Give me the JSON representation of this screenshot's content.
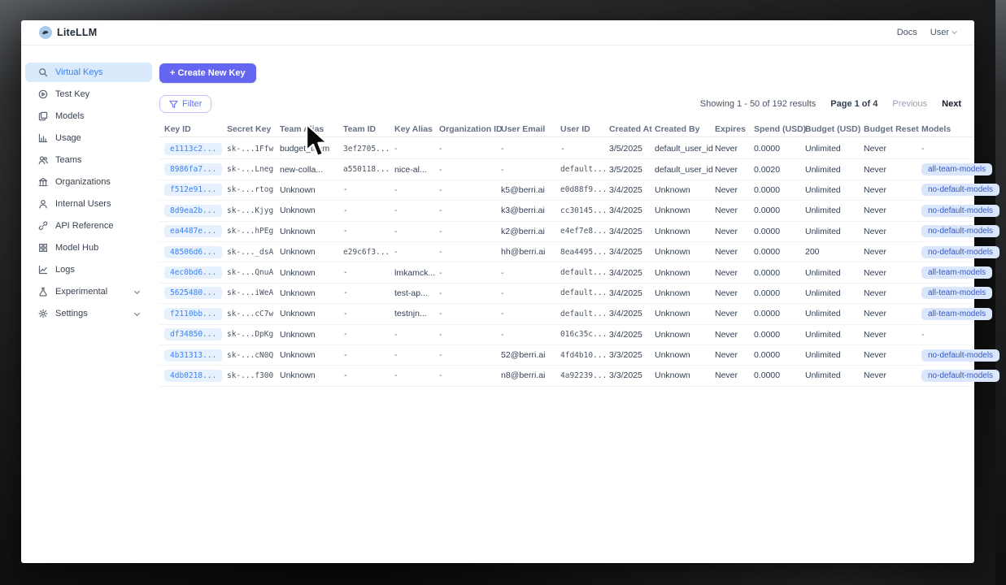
{
  "header": {
    "logo_text": "LiteLLM",
    "docs_label": "Docs",
    "user_label": "User"
  },
  "sidebar": {
    "items": [
      {
        "label": "Virtual Keys",
        "icon": "search-icon",
        "active": true,
        "chevron": false
      },
      {
        "label": "Test Key",
        "icon": "play-circle-icon",
        "active": false,
        "chevron": false
      },
      {
        "label": "Models",
        "icon": "stack-icon",
        "active": false,
        "chevron": false
      },
      {
        "label": "Usage",
        "icon": "bar-chart-icon",
        "active": false,
        "chevron": false
      },
      {
        "label": "Teams",
        "icon": "users-icon",
        "active": false,
        "chevron": false
      },
      {
        "label": "Organizations",
        "icon": "bank-icon",
        "active": false,
        "chevron": false
      },
      {
        "label": "Internal Users",
        "icon": "user-icon",
        "active": false,
        "chevron": false
      },
      {
        "label": "API Reference",
        "icon": "link-icon",
        "active": false,
        "chevron": false
      },
      {
        "label": "Model Hub",
        "icon": "grid-icon",
        "active": false,
        "chevron": false
      },
      {
        "label": "Logs",
        "icon": "line-chart-icon",
        "active": false,
        "chevron": false
      },
      {
        "label": "Experimental",
        "icon": "flask-icon",
        "active": false,
        "chevron": true
      },
      {
        "label": "Settings",
        "icon": "gear-icon",
        "active": false,
        "chevron": true
      }
    ]
  },
  "toolbar": {
    "create_key_label": "+ Create New Key",
    "filter_label": "Filter"
  },
  "pagination": {
    "showing": "Showing 1 - 50 of 192 results",
    "page": "Page 1 of 4",
    "previous": "Previous",
    "next": "Next"
  },
  "table": {
    "columns": [
      "Key ID",
      "Secret Key",
      "Team Alias",
      "Team ID",
      "Key Alias",
      "Organization ID",
      "User Email",
      "User ID",
      "Created At",
      "Created By",
      "Expires",
      "Spend (USD)",
      "Budget (USD)",
      "Budget Reset",
      "Models"
    ],
    "rows": [
      {
        "key_id": "e1113c2...",
        "secret_key": "sk-...1Ffw",
        "team_alias": "budget_team",
        "team_id": "3ef2705...",
        "key_alias": "-",
        "org_id": "-",
        "user_email": "-",
        "user_id": "-",
        "created_at": "3/5/2025",
        "created_by": "default_user_id",
        "expires": "Never",
        "spend": "0.0000",
        "budget": "Unlimited",
        "budget_reset": "Never",
        "models": "-"
      },
      {
        "key_id": "8986fa7...",
        "secret_key": "sk-...Lneg",
        "team_alias": "new-colla...",
        "team_id": "a550118...",
        "key_alias": "nice-al...",
        "org_id": "-",
        "user_email": "-",
        "user_id": "default...",
        "created_at": "3/5/2025",
        "created_by": "default_user_id",
        "expires": "Never",
        "spend": "0.0020",
        "budget": "Unlimited",
        "budget_reset": "Never",
        "models": "all-team-models"
      },
      {
        "key_id": "f512e91...",
        "secret_key": "sk-...rtog",
        "team_alias": "Unknown",
        "team_id": "-",
        "key_alias": "-",
        "org_id": "-",
        "user_email": "k5@berri.ai",
        "user_id": "e0d88f9...",
        "created_at": "3/4/2025",
        "created_by": "Unknown",
        "expires": "Never",
        "spend": "0.0000",
        "budget": "Unlimited",
        "budget_reset": "Never",
        "models": "no-default-models"
      },
      {
        "key_id": "8d9ea2b...",
        "secret_key": "sk-...Kjyg",
        "team_alias": "Unknown",
        "team_id": "-",
        "key_alias": "-",
        "org_id": "-",
        "user_email": "k3@berri.ai",
        "user_id": "cc30145...",
        "created_at": "3/4/2025",
        "created_by": "Unknown",
        "expires": "Never",
        "spend": "0.0000",
        "budget": "Unlimited",
        "budget_reset": "Never",
        "models": "no-default-models"
      },
      {
        "key_id": "ea4487e...",
        "secret_key": "sk-...hPEg",
        "team_alias": "Unknown",
        "team_id": "-",
        "key_alias": "-",
        "org_id": "-",
        "user_email": "k2@berri.ai",
        "user_id": "e4ef7e8...",
        "created_at": "3/4/2025",
        "created_by": "Unknown",
        "expires": "Never",
        "spend": "0.0000",
        "budget": "Unlimited",
        "budget_reset": "Never",
        "models": "no-default-models"
      },
      {
        "key_id": "48506d6...",
        "secret_key": "sk-..._dsA",
        "team_alias": "Unknown",
        "team_id": "e29c6f3...",
        "key_alias": "-",
        "org_id": "-",
        "user_email": "hh@berri.ai",
        "user_id": "8ea4495...",
        "created_at": "3/4/2025",
        "created_by": "Unknown",
        "expires": "Never",
        "spend": "0.0000",
        "budget": "200",
        "budget_reset": "Never",
        "models": "no-default-models"
      },
      {
        "key_id": "4ec0bd6...",
        "secret_key": "sk-...QnuA",
        "team_alias": "Unknown",
        "team_id": "-",
        "key_alias": "lmkamck...",
        "org_id": "-",
        "user_email": "-",
        "user_id": "default...",
        "created_at": "3/4/2025",
        "created_by": "Unknown",
        "expires": "Never",
        "spend": "0.0000",
        "budget": "Unlimited",
        "budget_reset": "Never",
        "models": "all-team-models"
      },
      {
        "key_id": "5625480...",
        "secret_key": "sk-...iWeA",
        "team_alias": "Unknown",
        "team_id": "-",
        "key_alias": "test-ap...",
        "org_id": "-",
        "user_email": "-",
        "user_id": "default...",
        "created_at": "3/4/2025",
        "created_by": "Unknown",
        "expires": "Never",
        "spend": "0.0000",
        "budget": "Unlimited",
        "budget_reset": "Never",
        "models": "all-team-models"
      },
      {
        "key_id": "f2110bb...",
        "secret_key": "sk-...cC7w",
        "team_alias": "Unknown",
        "team_id": "-",
        "key_alias": "testnjn...",
        "org_id": "-",
        "user_email": "-",
        "user_id": "default...",
        "created_at": "3/4/2025",
        "created_by": "Unknown",
        "expires": "Never",
        "spend": "0.0000",
        "budget": "Unlimited",
        "budget_reset": "Never",
        "models": "all-team-models"
      },
      {
        "key_id": "df34850...",
        "secret_key": "sk-...DpKg",
        "team_alias": "Unknown",
        "team_id": "-",
        "key_alias": "-",
        "org_id": "-",
        "user_email": "-",
        "user_id": "016c35c...",
        "created_at": "3/4/2025",
        "created_by": "Unknown",
        "expires": "Never",
        "spend": "0.0000",
        "budget": "Unlimited",
        "budget_reset": "Never",
        "models": "-"
      },
      {
        "key_id": "4b31313...",
        "secret_key": "sk-...cN0Q",
        "team_alias": "Unknown",
        "team_id": "-",
        "key_alias": "-",
        "org_id": "-",
        "user_email": "52@berri.ai",
        "user_id": "4fd4b10...",
        "created_at": "3/3/2025",
        "created_by": "Unknown",
        "expires": "Never",
        "spend": "0.0000",
        "budget": "Unlimited",
        "budget_reset": "Never",
        "models": "no-default-models"
      },
      {
        "key_id": "4db0218...",
        "secret_key": "sk-...f300",
        "team_alias": "Unknown",
        "team_id": "-",
        "key_alias": "-",
        "org_id": "-",
        "user_email": "n8@berri.ai",
        "user_id": "4a92239...",
        "created_at": "3/3/2025",
        "created_by": "Unknown",
        "expires": "Never",
        "spend": "0.0000",
        "budget": "Unlimited",
        "budget_reset": "Never",
        "models": "no-default-models"
      }
    ]
  },
  "colors": {
    "accent": "#6466f1",
    "active_item_bg": "#d9eafc",
    "active_item_text": "#3b82f6",
    "key_pill_bg": "#e7f1fd",
    "model_badge_bg": "#d9e6fb"
  }
}
